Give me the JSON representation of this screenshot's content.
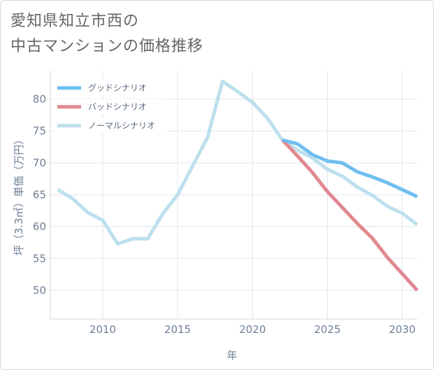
{
  "title_line1": "愛知県知立市西の",
  "title_line2": "中古マンションの価格推移",
  "chart_data": {
    "type": "line",
    "xlabel": "年",
    "ylabel": "坪（3.3㎡）単価（万円）",
    "xlim": [
      2006.5,
      2031
    ],
    "ylim": [
      45.5,
      84.5
    ],
    "x_ticks": [
      2010,
      2015,
      2020,
      2025,
      2030
    ],
    "y_ticks": [
      50,
      55,
      60,
      65,
      70,
      75,
      80
    ],
    "legend_position": "top-left",
    "series": [
      {
        "name": "グッドシナリオ",
        "color": "#6fbef0",
        "x": [
          2022,
          2023,
          2024,
          2025,
          2026,
          2027,
          2028,
          2029,
          2030,
          2031
        ],
        "values": [
          73.6,
          73.0,
          71.3,
          70.3,
          70.0,
          68.6,
          67.8,
          66.9,
          65.8,
          64.7
        ]
      },
      {
        "name": "バッドシナリオ",
        "color": "#e08890",
        "x": [
          2022,
          2023,
          2024,
          2025,
          2026,
          2027,
          2028,
          2029,
          2030,
          2031
        ],
        "values": [
          73.6,
          71.1,
          68.5,
          65.5,
          63.0,
          60.5,
          58.2,
          55.2,
          52.6,
          50.0
        ]
      },
      {
        "name": "ノーマルシナリオ",
        "color": "#bde0ed",
        "x": [
          2007,
          2008,
          2009,
          2010,
          2011,
          2012,
          2013,
          2014,
          2015,
          2016,
          2017,
          2018,
          2019,
          2020,
          2021,
          2022,
          2023,
          2024,
          2025,
          2026,
          2027,
          2028,
          2029,
          2030,
          2031
        ],
        "values": [
          65.8,
          64.4,
          62.2,
          61.0,
          57.3,
          58.1,
          58.1,
          62.0,
          65.0,
          69.5,
          74.0,
          82.8,
          81.2,
          79.5,
          77.0,
          73.6,
          72.0,
          70.8,
          69.0,
          67.9,
          66.2,
          64.9,
          63.2,
          62.1,
          60.3
        ]
      }
    ]
  }
}
